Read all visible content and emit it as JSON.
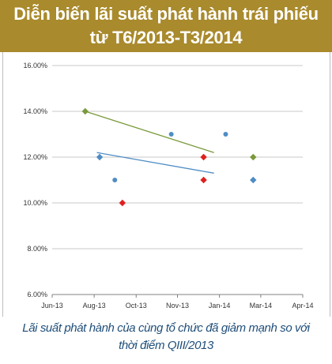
{
  "header": {
    "title_line1": "Diễn biến lãi suất phát hành trái phiếu",
    "title_line2": "từ T6/2013-T3/2014"
  },
  "caption": {
    "line1": "Lãi suất phát hành của cùng tổ chức đã giảm mạnh so với",
    "line2": "thời điểm QIII/2013"
  },
  "colors": {
    "header_bg": "#a98a2c",
    "green": "#7a9a3a",
    "blue": "#4f8dc4",
    "red": "#e02020",
    "caption_text": "#1f4e79"
  },
  "chart_data": {
    "type": "scatter",
    "title": "",
    "xlabel": "",
    "ylabel": "",
    "x_ticks": [
      "Jun-13",
      "Aug-13",
      "Oct-13",
      "Nov-13",
      "Jan-14",
      "Mar-14",
      "Apr-14"
    ],
    "x_tick_dates": [
      "2013-06-01",
      "2013-08-01",
      "2013-10-01",
      "2013-11-30",
      "2014-01-30",
      "2014-03-31",
      "2014-05-31"
    ],
    "xlim": [
      "2013-06-01",
      "2014-05-31"
    ],
    "y_ticks": [
      "6.00%",
      "8.00%",
      "10.00%",
      "12.00%",
      "14.00%",
      "16.00%"
    ],
    "ylim": [
      6,
      16
    ],
    "grid": "horizontal",
    "legend": "none",
    "series": [
      {
        "color": "#7a9a3a",
        "marker": "diamond",
        "points": [
          {
            "x": "2013-07-19",
            "y": 14.0
          },
          {
            "x": "2014-03-20",
            "y": 12.0
          }
        ],
        "trendline": [
          {
            "x": "2013-07-19",
            "y": 14.0
          },
          {
            "x": "2014-01-22",
            "y": 12.2
          }
        ]
      },
      {
        "color": "#4f8dc4",
        "marker": "diamond",
        "points": [
          {
            "x": "2013-08-09",
            "y": 12.0
          },
          {
            "x": "2014-03-20",
            "y": 11.0
          }
        ],
        "trendline": [
          {
            "x": "2013-08-05",
            "y": 12.2
          },
          {
            "x": "2014-01-22",
            "y": 11.3
          }
        ]
      },
      {
        "color": "#4f8dc4",
        "marker": "circle",
        "points": [
          {
            "x": "2013-08-31",
            "y": 11.0
          },
          {
            "x": "2013-11-21",
            "y": 13.0
          },
          {
            "x": "2014-02-08",
            "y": 13.0
          }
        ]
      },
      {
        "color": "#e02020",
        "marker": "diamond",
        "points": [
          {
            "x": "2013-09-11",
            "y": 10.0
          },
          {
            "x": "2014-01-07",
            "y": 12.0
          },
          {
            "x": "2014-01-07",
            "y": 11.0
          }
        ]
      }
    ]
  }
}
